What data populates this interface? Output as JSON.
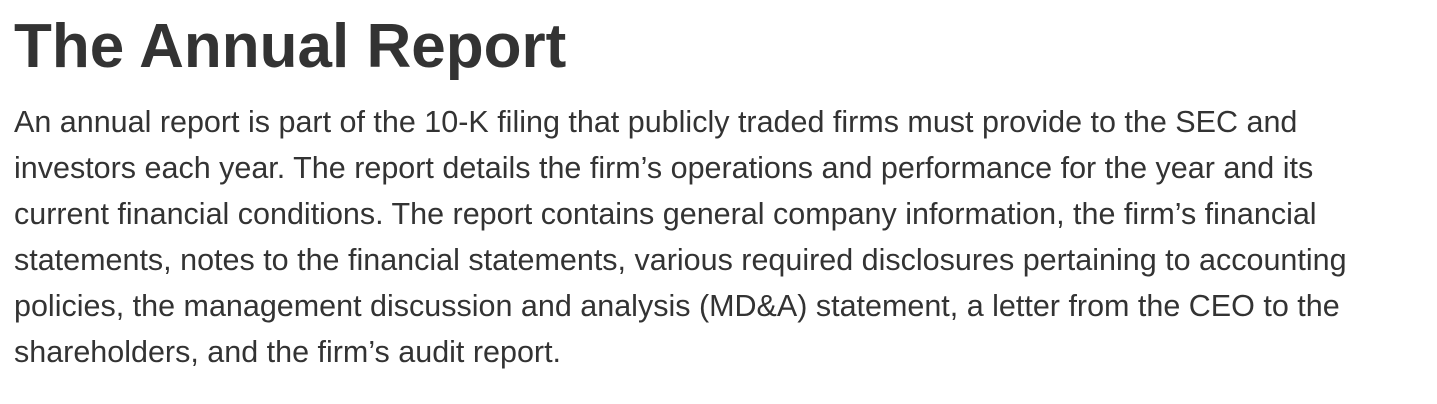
{
  "section": {
    "title": "The Annual Report",
    "paragraph_lines": [
      "An annual report is part of the 10-K filing that publicly traded firms must provide to the SEC and",
      "investors each year. The report details the firm’s operations and performance for the year and its",
      "current financial conditions. The report contains general company information, the firm’s financial",
      "statements, notes to the financial statements, various required disclosures pertaining to accounting",
      "policies, the management discussion and analysis (MD&A) statement, a letter from the CEO to the",
      "shareholders, and the firm’s audit report."
    ]
  },
  "colors": {
    "text": "#333333",
    "background": "#ffffff"
  }
}
